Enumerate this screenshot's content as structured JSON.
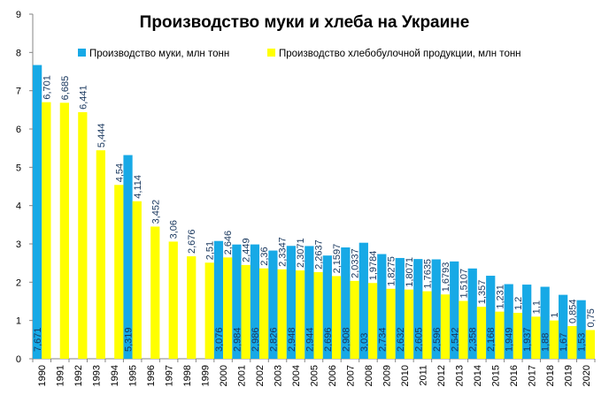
{
  "chart_data": {
    "type": "bar",
    "title": "Производство муки и хлеба на Украине",
    "xlabel": "",
    "ylabel": "",
    "ylim": [
      0,
      9
    ],
    "yticks": [
      "0",
      "1",
      "2",
      "3",
      "4",
      "5",
      "6",
      "7",
      "8",
      "9"
    ],
    "grid": false,
    "legend_position": "top",
    "categories": [
      "1990",
      "1991",
      "1992",
      "1993",
      "1994",
      "1995",
      "1996",
      "1997",
      "1998",
      "1999",
      "2000",
      "2001",
      "2002",
      "2003",
      "2004",
      "2005",
      "2006",
      "2007",
      "2008",
      "2009",
      "2010",
      "2011",
      "2012",
      "2013",
      "2014",
      "2015",
      "2016",
      "2017",
      "2018",
      "2019",
      "2020"
    ],
    "series": [
      {
        "name": "Производство муки, млн тонн",
        "color": "#17a9e6",
        "values": [
          7.671,
          null,
          null,
          null,
          null,
          5.319,
          null,
          null,
          null,
          null,
          3.076,
          2.984,
          2.986,
          2.826,
          2.948,
          2.944,
          2.696,
          2.908,
          3.03,
          2.734,
          2.632,
          2.605,
          2.596,
          2.542,
          2.358,
          2.168,
          1.949,
          1.937,
          1.88,
          1.67,
          1.53
        ],
        "labels": [
          "7,671",
          "",
          "",
          "",
          "",
          "5,319",
          "",
          "",
          "",
          "",
          "3,076",
          "2,984",
          "2,986",
          "2,826",
          "2,948",
          "2,944",
          "2,696",
          "2,908",
          "3,03",
          "2,734",
          "2,632",
          "2,605",
          "2,596",
          "2,542",
          "2,358",
          "2,168",
          "1,949",
          "1,937",
          "1,88",
          "1,67",
          "1,53"
        ]
      },
      {
        "name": "Производство хлебобулочной продукции, млн тонн",
        "color": "#ffff00",
        "values": [
          6.701,
          6.685,
          6.441,
          5.444,
          4.54,
          4.114,
          3.452,
          3.06,
          2.676,
          2.51,
          2.646,
          2.449,
          2.36,
          2.3347,
          2.3071,
          2.2637,
          2.1597,
          2.0337,
          1.9784,
          1.8275,
          1.8071,
          1.7635,
          1.6793,
          1.5107,
          1.357,
          1.231,
          1.2,
          1.1,
          1,
          0.854,
          0.75
        ],
        "labels": [
          "6,701",
          "6,685",
          "6,441",
          "5,444",
          "4,54",
          "4,114",
          "3,452",
          "3,06",
          "2,676",
          "2,51",
          "2,646",
          "2,449",
          "2,36",
          "2,3347",
          "2,3071",
          "2,2637",
          "2,1597",
          "2,0337",
          "1,9784",
          "1,8275",
          "1,8071",
          "1,7635",
          "1,6793",
          "1,5107",
          "1,357",
          "1,231",
          "1,2",
          "1,1",
          "1",
          "0,854",
          "0,75"
        ]
      }
    ]
  }
}
